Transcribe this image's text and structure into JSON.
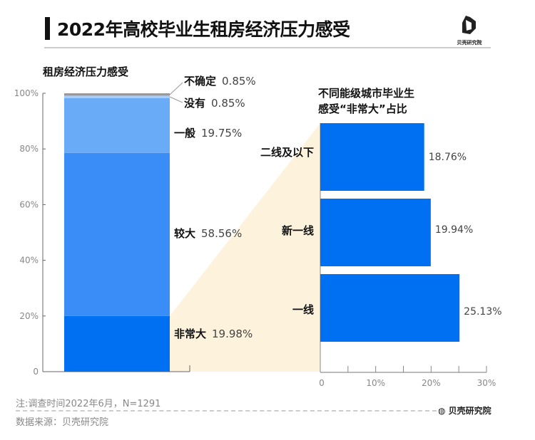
{
  "header": {
    "title": "2022年高校毕业生租房经济压力感受",
    "logo_text": "贝壳研究院"
  },
  "chart_data": [
    {
      "type": "bar",
      "stacked": true,
      "title": "租房经济压力感受",
      "yticks": [
        "0",
        "20%",
        "40%",
        "60%",
        "80%",
        "100%"
      ],
      "ylim": [
        0,
        100
      ],
      "series": [
        {
          "name": "非常大",
          "value": 19.98,
          "label": "19.98%",
          "color": "#0070f2"
        },
        {
          "name": "较大",
          "value": 58.56,
          "label": "58.56%",
          "color": "#3a8df6"
        },
        {
          "name": "一般",
          "value": 19.75,
          "label": "19.75%",
          "color": "#6aabf8"
        },
        {
          "name": "没有",
          "value": 0.85,
          "label": "0.85%",
          "color": "#a9cdf9"
        },
        {
          "name": "不确定",
          "value": 0.85,
          "label": "0.85%",
          "color": "#999999"
        }
      ]
    },
    {
      "type": "bar",
      "orientation": "horizontal",
      "title_line1": "不同能级城市毕业生",
      "title_line2": "感受“非常大”占比",
      "categories": [
        "二线及以下",
        "新一线",
        "一线"
      ],
      "values": [
        18.76,
        19.94,
        25.13
      ],
      "labels": [
        "18.76%",
        "19.94%",
        "25.13%"
      ],
      "xticks": [
        "0",
        "10%",
        "20%",
        "30%"
      ],
      "xlim": [
        0,
        30
      ],
      "color": "#0070f2"
    }
  ],
  "highlight_color": "#fdf3dc",
  "footer": {
    "note": "注:调查时间2022年6月，N=1291",
    "source": "数据来源：贝壳研究院",
    "logo_text": "贝壳研究院"
  }
}
